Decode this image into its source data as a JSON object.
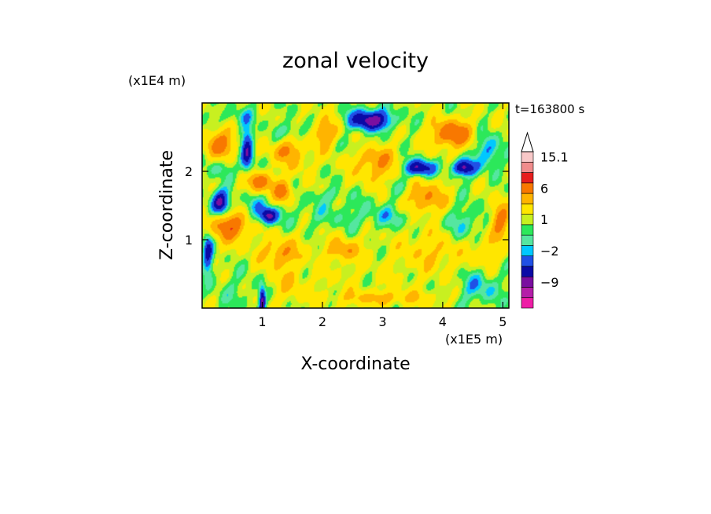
{
  "chart_data": {
    "type": "heatmap",
    "title": "zonal velocity",
    "xlabel": "X-coordinate",
    "ylabel": "Z-coordinate",
    "x_scale_label": "(x1E5 m)",
    "y_scale_label": "(x1E4 m)",
    "time_label": "t=163800 s",
    "xlim": [
      0,
      5.1
    ],
    "ylim": [
      0,
      3.0
    ],
    "x_ticks": [
      {
        "value": 1,
        "label": "1"
      },
      {
        "value": 2,
        "label": "2"
      },
      {
        "value": 3,
        "label": "3"
      },
      {
        "value": 4,
        "label": "4"
      },
      {
        "value": 5,
        "label": "5"
      }
    ],
    "y_ticks": [
      {
        "value": 1,
        "label": "1"
      },
      {
        "value": 2,
        "label": "2"
      }
    ],
    "colorbar": {
      "levels": [
        -15,
        -12,
        -9,
        -6,
        -4,
        -2,
        -1,
        0,
        1,
        2,
        4,
        6,
        9,
        12,
        15.1
      ],
      "colors": [
        "#ee1ea6",
        "#b41ea8",
        "#7a0ea0",
        "#0a0aa6",
        "#2050e6",
        "#00c8ff",
        "#55e6a0",
        "#2ce85a",
        "#c8f020",
        "#ffe600",
        "#ffb400",
        "#f87800",
        "#e61e1e",
        "#f08c8c",
        "#f8c8c8"
      ],
      "extend_max": true,
      "tick_labels": [
        {
          "value": 15.1,
          "label": "15.1"
        },
        {
          "value": 6,
          "label": "6"
        },
        {
          "value": 1,
          "label": "1"
        },
        {
          "value": -2,
          "label": "−2"
        },
        {
          "value": -9,
          "label": "−9"
        }
      ]
    },
    "background_color": "#ffe600",
    "field_features": [
      {
        "x": 0.6,
        "z": 0.25,
        "value": -1,
        "rx": 0.55,
        "rz": 0.35
      },
      {
        "x": 2.7,
        "z": 0.45,
        "value": 0.5,
        "rx": 1.6,
        "rz": 0.5
      },
      {
        "x": 1.6,
        "z": 1.05,
        "value": 0.5,
        "rx": 1.3,
        "rz": 0.5
      },
      {
        "x": 2.2,
        "z": 1.35,
        "value": -1.5,
        "rx": 1.3,
        "rz": 0.25
      },
      {
        "x": 0.45,
        "z": 1.2,
        "value": 7,
        "rx": 0.3,
        "rz": 0.2
      },
      {
        "x": 1.3,
        "z": 0.8,
        "value": 4,
        "rx": 0.3,
        "rz": 0.2
      },
      {
        "x": 2.35,
        "z": 0.85,
        "value": 4,
        "rx": 0.25,
        "rz": 0.15
      },
      {
        "x": 3.85,
        "z": 0.85,
        "value": 2.5,
        "rx": 0.5,
        "rz": 0.3
      },
      {
        "x": 3.7,
        "z": 1.6,
        "value": 5,
        "rx": 0.35,
        "rz": 0.25
      },
      {
        "x": 4.4,
        "z": 1.2,
        "value": -2.5,
        "rx": 0.35,
        "rz": 0.3
      },
      {
        "x": 4.7,
        "z": 0.9,
        "value": 2.5,
        "rx": 0.25,
        "rz": 0.3
      },
      {
        "x": 4.6,
        "z": 0.3,
        "value": -3,
        "rx": 0.35,
        "rz": 0.25
      },
      {
        "x": 3.0,
        "z": 0.15,
        "value": 3,
        "rx": 0.8,
        "rz": 0.1
      },
      {
        "x": 1.4,
        "z": 0.35,
        "value": 2,
        "rx": 0.3,
        "rz": 0.25
      },
      {
        "x": 0.3,
        "z": 1.55,
        "value": -8,
        "rx": 0.15,
        "rz": 0.18
      },
      {
        "x": 1.1,
        "z": 1.35,
        "value": -8,
        "rx": 0.15,
        "rz": 0.12
      },
      {
        "x": 0.85,
        "z": 1.5,
        "value": -2,
        "rx": 0.2,
        "rz": 0.15
      },
      {
        "x": 0.95,
        "z": 1.85,
        "value": 6,
        "rx": 0.25,
        "rz": 0.15
      },
      {
        "x": 1.35,
        "z": 1.7,
        "value": 6,
        "rx": 0.15,
        "rz": 0.15
      },
      {
        "x": 1.4,
        "z": 2.3,
        "value": 5,
        "rx": 0.25,
        "rz": 0.15
      },
      {
        "x": 0.3,
        "z": 2.4,
        "value": 6,
        "rx": 0.25,
        "rz": 0.2
      },
      {
        "x": 0.3,
        "z": 2.05,
        "value": -2,
        "rx": 0.2,
        "rz": 0.15
      },
      {
        "x": 0.75,
        "z": 2.3,
        "value": -7,
        "rx": 0.1,
        "rz": 0.35
      },
      {
        "x": 1.5,
        "z": 2.6,
        "value": -2,
        "rx": 0.25,
        "rz": 0.12
      },
      {
        "x": 2.05,
        "z": 2.55,
        "value": 4,
        "rx": 0.25,
        "rz": 0.25
      },
      {
        "x": 2.9,
        "z": 2.15,
        "value": 4.5,
        "rx": 0.35,
        "rz": 0.3
      },
      {
        "x": 2.8,
        "z": 2.75,
        "value": -9,
        "rx": 0.35,
        "rz": 0.15
      },
      {
        "x": 2.7,
        "z": 2.4,
        "value": -1.5,
        "rx": 0.5,
        "rz": 0.12
      },
      {
        "x": 3.6,
        "z": 2.05,
        "value": -8,
        "rx": 0.25,
        "rz": 0.12
      },
      {
        "x": 4.15,
        "z": 2.55,
        "value": 7,
        "rx": 0.35,
        "rz": 0.2
      },
      {
        "x": 4.35,
        "z": 2.05,
        "value": -8,
        "rx": 0.2,
        "rz": 0.12
      },
      {
        "x": 4.75,
        "z": 2.3,
        "value": -4,
        "rx": 0.2,
        "rz": 0.25
      },
      {
        "x": 3.3,
        "z": 1.75,
        "value": -1.5,
        "rx": 0.3,
        "rz": 0.15
      },
      {
        "x": 4.95,
        "z": 1.3,
        "value": 6,
        "rx": 0.15,
        "rz": 0.25
      },
      {
        "x": 0.1,
        "z": 0.8,
        "value": -6,
        "rx": 0.08,
        "rz": 0.3
      },
      {
        "x": 2.1,
        "z": 1.65,
        "value": -1.5,
        "rx": 0.3,
        "rz": 0.1
      },
      {
        "x": 3.2,
        "z": 1.35,
        "value": -1.5,
        "rx": 0.45,
        "rz": 0.15
      },
      {
        "x": 0.6,
        "z": 2.8,
        "value": -1.5,
        "rx": 0.4,
        "rz": 0.12
      },
      {
        "x": 1.6,
        "z": 2.1,
        "value": 2,
        "rx": 0.2,
        "rz": 0.15
      },
      {
        "x": 1.0,
        "z": 0.1,
        "value": -8,
        "rx": 0.05,
        "rz": 0.2
      }
    ]
  }
}
